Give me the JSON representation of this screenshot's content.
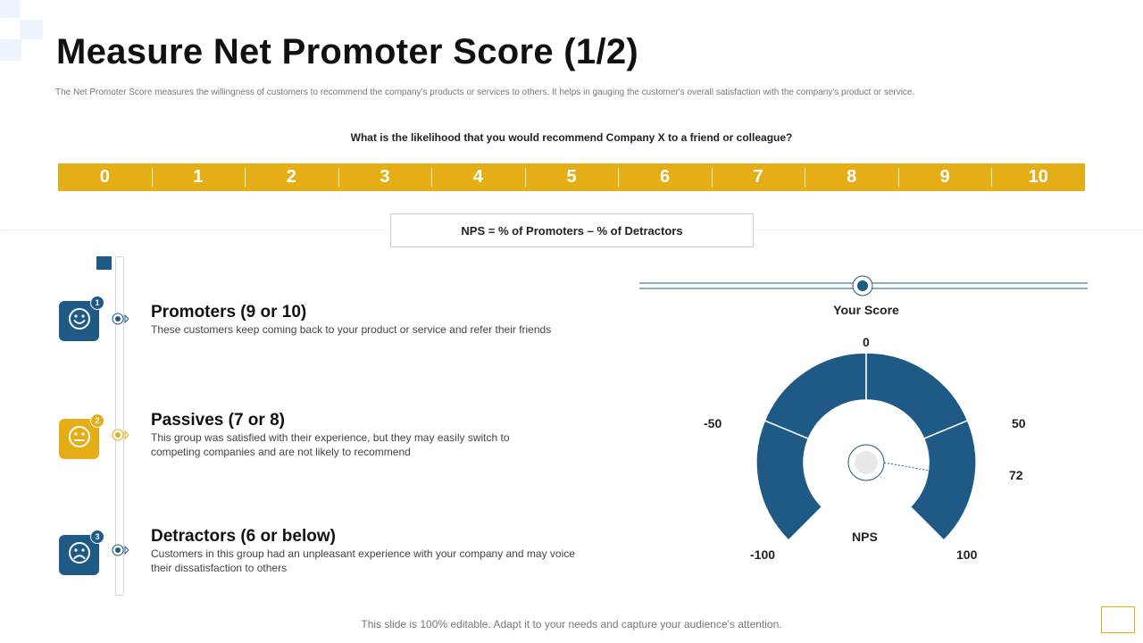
{
  "title": "Measure Net Promoter Score (1/2)",
  "subtitle": "The Net Promoter Score measures the willingness of customers to recommend the company's products or services to others. It helps in gauging the customer's overall satisfaction with the company's product or service.",
  "question": "What is the likelihood that you would recommend Company X to a friend or colleague?",
  "scale": [
    "0",
    "1",
    "2",
    "3",
    "4",
    "5",
    "6",
    "7",
    "8",
    "9",
    "10"
  ],
  "formula": "NPS = % of Promoters – % of Detractors",
  "categories": [
    {
      "number": "1",
      "title": "Promoters (9 or 10)",
      "description": "These customers keep coming back to your product or service and refer their friends",
      "icon": "smile-icon"
    },
    {
      "number": "2",
      "title": "Passives (7 or 8)",
      "description": "This group was satisfied with their experience, but they may easily switch to competing companies and are not likely to recommend",
      "icon": "neutral-face-icon"
    },
    {
      "number": "3",
      "title": "Detractors (6 or below)",
      "description": "Customers in this group had an unpleasant experience with your company and may voice their dissatisfaction to others",
      "icon": "sad-face-icon"
    }
  ],
  "gauge": {
    "your_score_label": "Your Score",
    "labels": {
      "zero": "0",
      "minus_fifty": "-50",
      "fifty": "50",
      "minus_hundred": "-100",
      "hundred": "100",
      "center": "NPS"
    },
    "value_label": "72",
    "min": -100,
    "max": 100,
    "value": 72
  },
  "footer": "This slide is 100% editable. Adapt it to your needs and capture your audience's attention.",
  "colors": {
    "accent_yellow": "#E5AE17",
    "primary_blue": "#1F5A87"
  }
}
